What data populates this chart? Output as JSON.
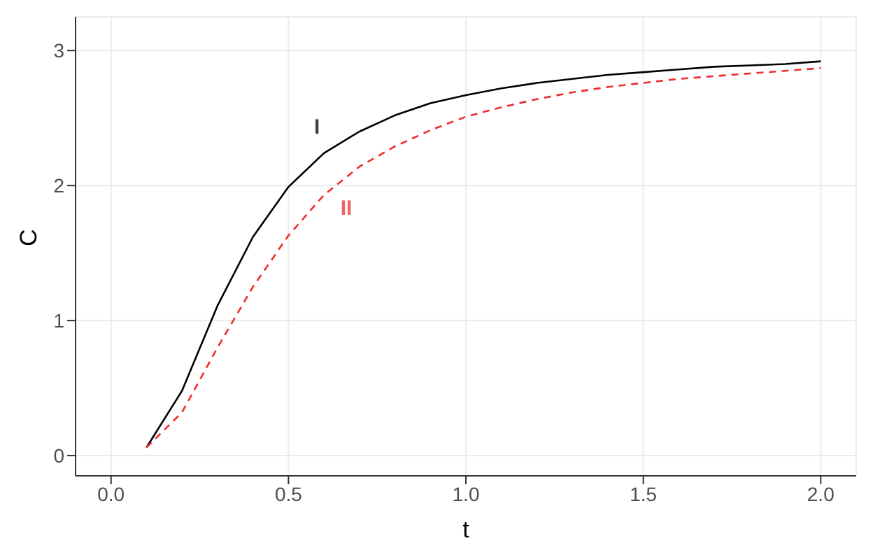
{
  "chart_data": {
    "type": "line",
    "xlabel": "t",
    "ylabel": "C",
    "x": [
      0.1,
      0.2,
      0.3,
      0.4,
      0.5,
      0.6,
      0.7,
      0.8,
      0.9,
      1.0,
      1.1,
      1.2,
      1.3,
      1.4,
      1.5,
      1.6,
      1.7,
      1.8,
      1.9,
      2.0
    ],
    "series": [
      {
        "color": "#000000",
        "line_style": "solid",
        "values": [
          0.06,
          0.48,
          1.11,
          1.62,
          1.99,
          2.24,
          2.4,
          2.52,
          2.61,
          2.67,
          2.72,
          2.76,
          2.79,
          2.82,
          2.84,
          2.86,
          2.88,
          2.89,
          2.9,
          2.92
        ]
      },
      {
        "color": "#ee2c2c",
        "line_style": "dashed",
        "values": [
          0.06,
          0.32,
          0.8,
          1.25,
          1.63,
          1.93,
          2.14,
          2.29,
          2.41,
          2.51,
          2.58,
          2.64,
          2.69,
          2.73,
          2.76,
          2.79,
          2.81,
          2.83,
          2.85,
          2.87
        ]
      }
    ],
    "annotations": [
      "I",
      "II"
    ],
    "xlim": [
      -0.1,
      2.1
    ],
    "xticks": [
      {
        "value": 0,
        "label": "0.0"
      },
      0.5,
      {
        "value": 1,
        "label": "1.0"
      },
      1.5,
      {
        "value": 2,
        "label": "2.0"
      }
    ],
    "ylim": [
      -0.15,
      3.25
    ],
    "yticks": [
      0,
      1,
      2,
      3
    ],
    "grid": true,
    "legend": false,
    "marker": "none"
  }
}
